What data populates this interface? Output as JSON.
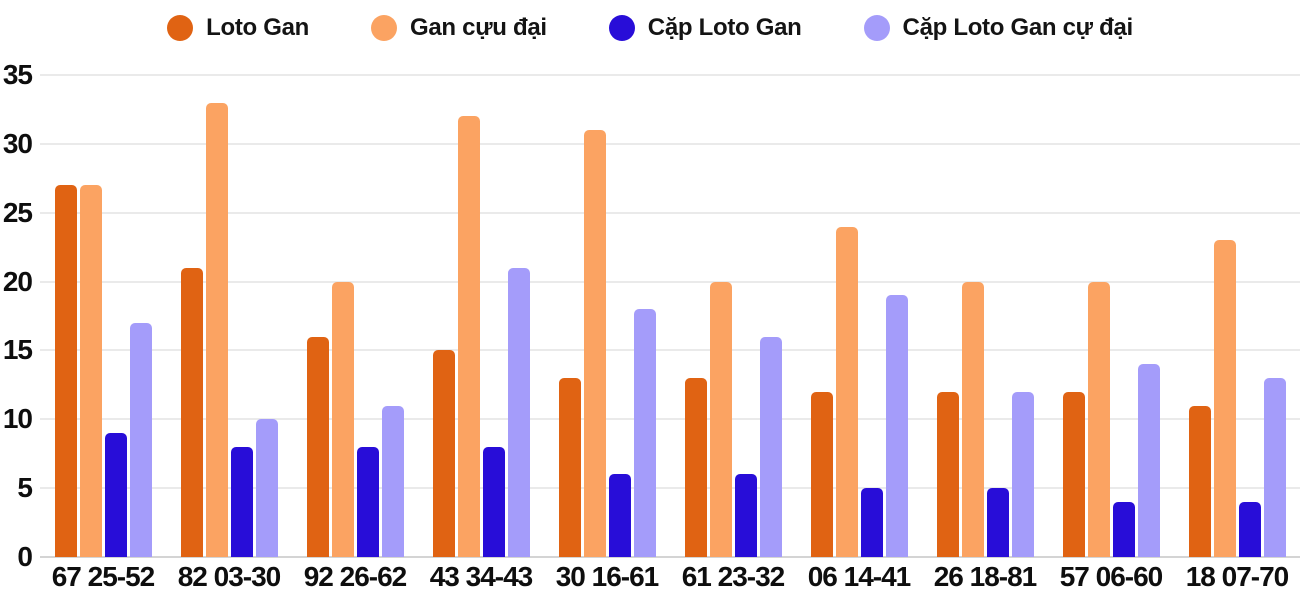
{
  "chart_data": {
    "type": "bar",
    "title": "",
    "xlabel": "",
    "ylabel": "",
    "categories": [
      "67 25-52",
      "82 03-30",
      "92 26-62",
      "43 34-43",
      "30 16-61",
      "61 23-32",
      "06 14-41",
      "26 18-81",
      "57 06-60",
      "18 07-70"
    ],
    "series": [
      {
        "name": "Loto Gan",
        "color": "#e06313",
        "values": [
          27,
          21,
          16,
          15,
          13,
          13,
          12,
          12,
          12,
          11
        ]
      },
      {
        "name": "Gan cựu đại",
        "color": "#fba362",
        "values": [
          27,
          33,
          20,
          32,
          31,
          20,
          24,
          20,
          20,
          23
        ]
      },
      {
        "name": "Cặp Loto Gan",
        "color": "#280dd8",
        "values": [
          9,
          8,
          8,
          8,
          6,
          6,
          5,
          5,
          4,
          4
        ]
      },
      {
        "name": "Cặp Loto Gan cự đại",
        "color": "#a49cfa",
        "values": [
          17,
          10,
          11,
          21,
          18,
          16,
          19,
          12,
          14,
          13
        ]
      }
    ],
    "ylim": [
      0,
      35
    ],
    "yticks": [
      0,
      5,
      10,
      15,
      20,
      25,
      30,
      35
    ],
    "grid": true,
    "legend_position": "top"
  },
  "style": {
    "grid_color": "#eaeaea",
    "baseline_color": "#d4d4d4",
    "background": "#ffffff",
    "text_color": "#0e0e0e"
  }
}
